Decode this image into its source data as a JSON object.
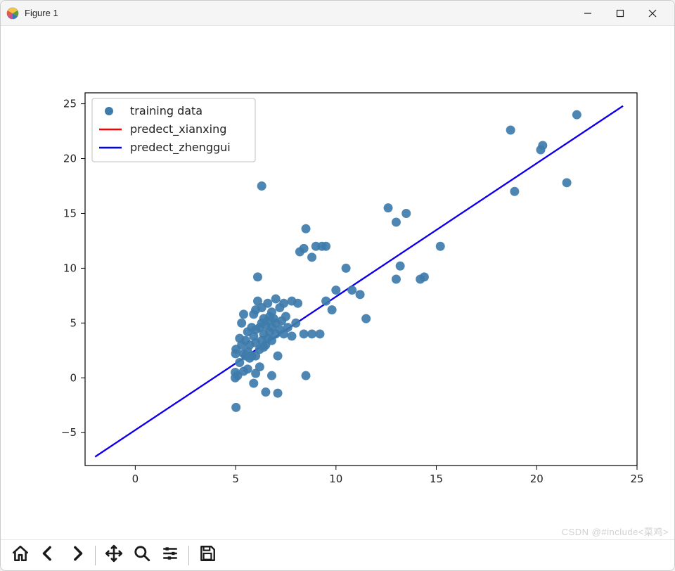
{
  "window": {
    "title": "Figure 1"
  },
  "toolbar": {
    "home": "home-icon",
    "back": "back-icon",
    "forward": "forward-icon",
    "pan": "pan-icon",
    "zoom": "zoom-icon",
    "configure": "configure-icon",
    "save": "save-icon"
  },
  "watermark": "CSDN @#include<菜鸡>",
  "chart": {
    "type": "scatter+line",
    "background_color": "#ffffff",
    "axes_border_color": "#000000",
    "tick_fontsize": 15,
    "legend_fontsize": 16,
    "xlim": [
      -2.5,
      25
    ],
    "ylim": [
      -8,
      26
    ],
    "xticks": [
      0,
      5,
      10,
      15,
      20,
      25
    ],
    "yticks": [
      -5,
      0,
      5,
      10,
      15,
      20,
      25
    ],
    "legend": {
      "position": "upper-left",
      "border_color": "#bfbfbf",
      "items": [
        {
          "label": "training data",
          "type": "scatter",
          "color": "#3e7cab"
        },
        {
          "label": "predect_xianxing",
          "type": "line",
          "color": "#ff0000"
        },
        {
          "label": "predect_zhenggui",
          "type": "line",
          "color": "#0000ff"
        }
      ]
    },
    "scatter": {
      "color": "#3e7cab",
      "marker_size": 6.5,
      "points": [
        [
          4.98,
          0.5
        ],
        [
          4.98,
          0.0
        ],
        [
          5.0,
          2.2
        ],
        [
          5.02,
          2.6
        ],
        [
          5.02,
          -2.7
        ],
        [
          5.1,
          0.2
        ],
        [
          5.2,
          1.4
        ],
        [
          5.2,
          3.6
        ],
        [
          5.3,
          3.0
        ],
        [
          5.3,
          5.0
        ],
        [
          5.4,
          2.2
        ],
        [
          5.4,
          0.6
        ],
        [
          5.4,
          5.8
        ],
        [
          5.5,
          2.0
        ],
        [
          5.5,
          3.4
        ],
        [
          5.6,
          0.8
        ],
        [
          5.6,
          2.4
        ],
        [
          5.6,
          4.2
        ],
        [
          5.7,
          1.8
        ],
        [
          5.7,
          3.0
        ],
        [
          5.8,
          4.6
        ],
        [
          5.8,
          2.0
        ],
        [
          5.9,
          -0.5
        ],
        [
          5.9,
          3.8
        ],
        [
          5.9,
          5.8
        ],
        [
          6.0,
          0.4
        ],
        [
          6.0,
          2.0
        ],
        [
          6.0,
          3.2
        ],
        [
          6.0,
          4.4
        ],
        [
          6.0,
          6.2
        ],
        [
          6.1,
          7.0
        ],
        [
          6.1,
          9.2
        ],
        [
          6.2,
          1.0
        ],
        [
          6.2,
          2.6
        ],
        [
          6.2,
          4.6
        ],
        [
          6.3,
          3.4
        ],
        [
          6.3,
          5.0
        ],
        [
          6.3,
          6.4
        ],
        [
          6.3,
          17.5
        ],
        [
          6.4,
          2.8
        ],
        [
          6.4,
          4.0
        ],
        [
          6.4,
          5.4
        ],
        [
          6.5,
          3.0
        ],
        [
          6.5,
          4.8
        ],
        [
          6.5,
          -1.3
        ],
        [
          6.6,
          3.6
        ],
        [
          6.6,
          5.2
        ],
        [
          6.6,
          6.8
        ],
        [
          6.7,
          4.2
        ],
        [
          6.7,
          5.6
        ],
        [
          6.8,
          0.2
        ],
        [
          6.8,
          3.4
        ],
        [
          6.8,
          4.6
        ],
        [
          6.8,
          6.0
        ],
        [
          6.9,
          5.4
        ],
        [
          7.0,
          4.0
        ],
        [
          7.0,
          5.0
        ],
        [
          7.0,
          7.2
        ],
        [
          7.1,
          2.0
        ],
        [
          7.1,
          -1.4
        ],
        [
          7.2,
          4.4
        ],
        [
          7.2,
          6.4
        ],
        [
          7.3,
          5.2
        ],
        [
          7.4,
          4.0
        ],
        [
          7.4,
          6.8
        ],
        [
          7.5,
          5.6
        ],
        [
          7.6,
          4.6
        ],
        [
          7.8,
          3.8
        ],
        [
          7.8,
          7.0
        ],
        [
          8.0,
          5.0
        ],
        [
          8.1,
          6.8
        ],
        [
          8.2,
          11.5
        ],
        [
          8.4,
          4.0
        ],
        [
          8.4,
          11.8
        ],
        [
          8.5,
          0.2
        ],
        [
          8.5,
          13.6
        ],
        [
          8.8,
          4.0
        ],
        [
          8.8,
          11.0
        ],
        [
          9.0,
          12.0
        ],
        [
          9.2,
          4.0
        ],
        [
          9.3,
          12.0
        ],
        [
          9.5,
          7.0
        ],
        [
          9.5,
          12.0
        ],
        [
          9.8,
          6.2
        ],
        [
          10.0,
          8.0
        ],
        [
          10.5,
          10.0
        ],
        [
          10.8,
          8.0
        ],
        [
          11.2,
          7.6
        ],
        [
          11.5,
          5.4
        ],
        [
          12.6,
          15.5
        ],
        [
          13.0,
          14.2
        ],
        [
          13.0,
          9.0
        ],
        [
          13.2,
          10.2
        ],
        [
          13.5,
          15.0
        ],
        [
          14.2,
          9.0
        ],
        [
          14.4,
          9.2
        ],
        [
          15.2,
          12.0
        ],
        [
          18.7,
          22.6
        ],
        [
          18.9,
          17.0
        ],
        [
          20.2,
          20.8
        ],
        [
          20.3,
          21.2
        ],
        [
          21.5,
          17.8
        ],
        [
          22.0,
          24.0
        ]
      ]
    },
    "lines": [
      {
        "name": "predect_xianxing",
        "color": "#ff0000",
        "width": 2.2,
        "x": [
          -2.0,
          24.3
        ],
        "y": [
          -7.2,
          24.8
        ]
      },
      {
        "name": "predect_zhenggui",
        "color": "#0000ff",
        "width": 2.2,
        "x": [
          -2.0,
          24.3
        ],
        "y": [
          -7.2,
          24.8
        ]
      }
    ]
  }
}
